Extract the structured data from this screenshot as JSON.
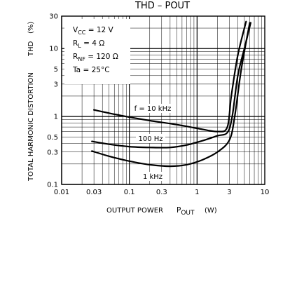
{
  "chart_data": {
    "type": "line",
    "title": "THD – POUT",
    "xlabel": "OUTPUT POWER",
    "xlabel_symbol": "POUT",
    "xlabel_unit": "(W)",
    "ylabel": "TOTAL HARMONIC DISTORTION",
    "ylabel_symbol": "THD",
    "ylabel_unit": "(%)",
    "x_scale": "log",
    "y_scale": "log",
    "xlim": [
      0.01,
      10
    ],
    "ylim": [
      0.1,
      30
    ],
    "grid": true,
    "x_ticks": [
      {
        "value": 0.01,
        "label": "0.01"
      },
      {
        "value": 0.03,
        "label": "0.03"
      },
      {
        "value": 0.1,
        "label": "0.1"
      },
      {
        "value": 0.3,
        "label": "0.3"
      },
      {
        "value": 1,
        "label": "1"
      },
      {
        "value": 3,
        "label": "3"
      },
      {
        "value": 10,
        "label": "10"
      }
    ],
    "y_ticks": [
      {
        "value": 0.1,
        "label": "0.1"
      },
      {
        "value": 0.3,
        "label": "0.3"
      },
      {
        "value": 0.5,
        "label": "0.5"
      },
      {
        "value": 1,
        "label": "1"
      },
      {
        "value": 3,
        "label": "3"
      },
      {
        "value": 5,
        "label": "5"
      },
      {
        "value": 10,
        "label": "10"
      },
      {
        "value": 30,
        "label": "30"
      }
    ],
    "conditions": [
      {
        "key": "vcc",
        "text": "VCC = 12 V"
      },
      {
        "key": "rl",
        "text": "RL = 4 Ω"
      },
      {
        "key": "rnf",
        "text": "RNF = 120 Ω"
      },
      {
        "key": "ta",
        "text": "Ta = 25°C"
      }
    ],
    "series": [
      {
        "name": "f = 10 kHz",
        "x": [
          0.03,
          0.05,
          0.1,
          0.2,
          0.5,
          1,
          2,
          2.8,
          3.2,
          4,
          5.3
        ],
        "y": [
          1.25,
          1.12,
          0.98,
          0.87,
          0.76,
          0.67,
          0.6,
          0.7,
          2.0,
          8.0,
          25
        ]
      },
      {
        "name": "100 Hz",
        "x": [
          0.028,
          0.05,
          0.1,
          0.2,
          0.4,
          0.7,
          1.2,
          2,
          2.8,
          3.3,
          4,
          5,
          6.2
        ],
        "y": [
          0.43,
          0.39,
          0.36,
          0.35,
          0.35,
          0.38,
          0.44,
          0.52,
          0.58,
          1.0,
          4.0,
          10,
          24
        ]
      },
      {
        "name": "1 kHz",
        "x": [
          0.028,
          0.05,
          0.1,
          0.2,
          0.4,
          0.7,
          1.2,
          2,
          3,
          3.6,
          4.5,
          6
        ],
        "y": [
          0.31,
          0.26,
          0.22,
          0.195,
          0.185,
          0.195,
          0.23,
          0.3,
          0.45,
          1.0,
          5.0,
          24
        ]
      }
    ],
    "annotations": [
      {
        "text": "f = 10 kHz",
        "series": "f = 10 kHz"
      },
      {
        "text": "100 Hz",
        "series": "100 Hz"
      },
      {
        "text": "1 kHz",
        "series": "1 kHz"
      }
    ]
  }
}
